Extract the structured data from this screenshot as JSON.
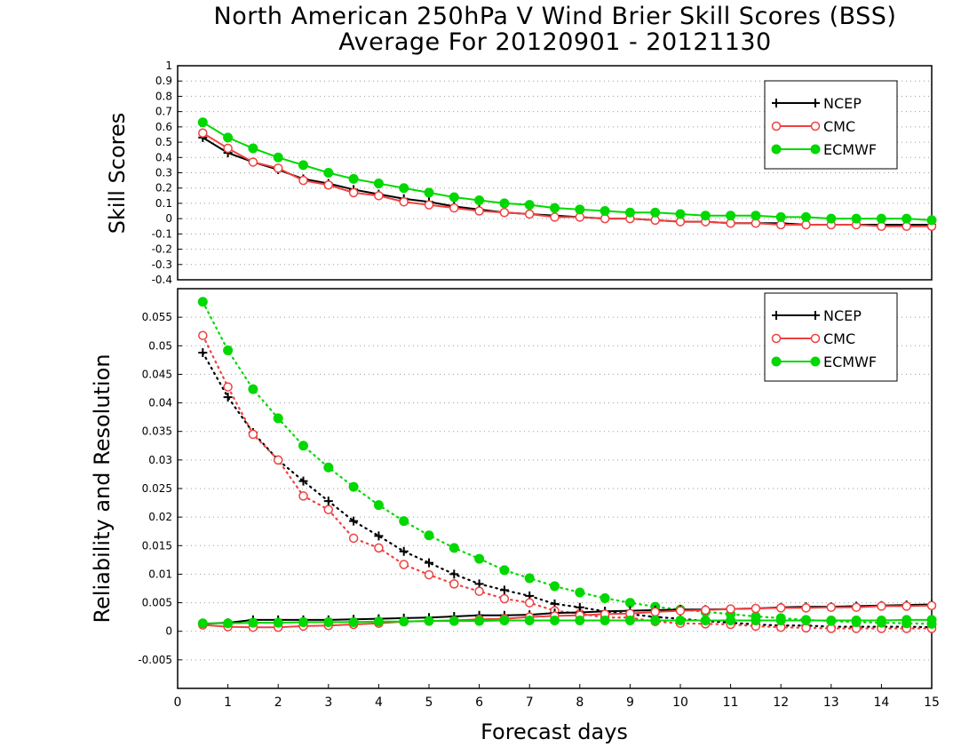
{
  "title": {
    "line1": "North American 250hPa V Wind Brier Skill Scores (BSS)",
    "line2": "Average For 20120901 - 20121130"
  },
  "colors": {
    "NCEP": "#000000",
    "CMC": "#f04040",
    "ECMWF": "#00d800",
    "grid": "#9a9a9a"
  },
  "chart_data": [
    {
      "type": "line",
      "ylabel": "Skill Scores",
      "xlabel": "",
      "xlim": [
        0,
        15
      ],
      "ylim": [
        -0.4,
        1
      ],
      "yticks": [
        "-0.4",
        "-0.3",
        "-0.2",
        "-0.1",
        "0",
        "0.1",
        "0.2",
        "0.3",
        "0.4",
        "0.5",
        "0.6",
        "0.7",
        "0.8",
        "0.9",
        "1"
      ],
      "legend": {
        "position": "top-right",
        "entries": [
          "NCEP",
          "CMC",
          "ECMWF"
        ]
      },
      "x": [
        0.5,
        1,
        1.5,
        2,
        2.5,
        3,
        3.5,
        4,
        4.5,
        5,
        5.5,
        6,
        6.5,
        7,
        7.5,
        8,
        8.5,
        9,
        9.5,
        10,
        10.5,
        11,
        11.5,
        12,
        12.5,
        13,
        13.5,
        14,
        14.5,
        15
      ],
      "series": [
        {
          "name": "NCEP",
          "marker": "plus",
          "style": "solid",
          "values": [
            0.53,
            0.43,
            0.37,
            0.32,
            0.26,
            0.23,
            0.19,
            0.16,
            0.13,
            0.11,
            0.08,
            0.06,
            0.04,
            0.03,
            0.02,
            0.01,
            0.0,
            0.0,
            -0.01,
            -0.02,
            -0.02,
            -0.03,
            -0.03,
            -0.03,
            -0.04,
            -0.04,
            -0.04,
            -0.04,
            -0.04,
            -0.04
          ]
        },
        {
          "name": "CMC",
          "marker": "open-circle",
          "style": "solid",
          "values": [
            0.56,
            0.46,
            0.37,
            0.33,
            0.25,
            0.22,
            0.17,
            0.15,
            0.11,
            0.09,
            0.07,
            0.05,
            0.04,
            0.03,
            0.01,
            0.01,
            0.0,
            0.0,
            -0.01,
            -0.02,
            -0.02,
            -0.03,
            -0.03,
            -0.04,
            -0.04,
            -0.04,
            -0.04,
            -0.05,
            -0.05,
            -0.05
          ]
        },
        {
          "name": "ECMWF",
          "marker": "filled-circle",
          "style": "solid",
          "values": [
            0.63,
            0.53,
            0.46,
            0.4,
            0.35,
            0.3,
            0.26,
            0.23,
            0.2,
            0.17,
            0.14,
            0.12,
            0.1,
            0.09,
            0.07,
            0.06,
            0.05,
            0.04,
            0.04,
            0.03,
            0.02,
            0.02,
            0.02,
            0.01,
            0.01,
            0.0,
            0.0,
            0.0,
            0.0,
            -0.01
          ]
        }
      ]
    },
    {
      "type": "line",
      "ylabel": "Reliability and Resolution",
      "xlabel": "Forecast days",
      "xlim": [
        0,
        15
      ],
      "ylim": [
        -0.01,
        0.06
      ],
      "yticks": [
        "-0.005",
        "0",
        "0.005",
        "0.01",
        "0.015",
        "0.02",
        "0.025",
        "0.03",
        "0.035",
        "0.04",
        "0.045",
        "0.05",
        "0.055"
      ],
      "xticks": [
        "0",
        "1",
        "2",
        "3",
        "4",
        "5",
        "6",
        "7",
        "8",
        "9",
        "10",
        "11",
        "12",
        "13",
        "14",
        "15"
      ],
      "legend": {
        "position": "top-right",
        "entries": [
          "NCEP",
          "CMC",
          "ECMWF"
        ]
      },
      "x": [
        0.5,
        1,
        1.5,
        2,
        2.5,
        3,
        3.5,
        4,
        4.5,
        5,
        5.5,
        6,
        6.5,
        7,
        7.5,
        8,
        8.5,
        9,
        9.5,
        10,
        10.5,
        11,
        11.5,
        12,
        12.5,
        13,
        13.5,
        14,
        14.5,
        15
      ],
      "series": [
        {
          "name": "NCEP",
          "marker": "plus",
          "style": "dotted",
          "role": "resolution",
          "values": [
            0.0488,
            0.041,
            0.0348,
            0.03,
            0.0263,
            0.0228,
            0.0193,
            0.0167,
            0.014,
            0.012,
            0.01,
            0.0083,
            0.0072,
            0.0062,
            0.0048,
            0.0042,
            0.0035,
            0.003,
            0.0025,
            0.0022,
            0.0018,
            0.0015,
            0.0012,
            0.001,
            0.001,
            0.0008,
            0.0008,
            0.0008,
            0.0008,
            0.0007
          ]
        },
        {
          "name": "CMC",
          "marker": "open-circle",
          "style": "dotted",
          "role": "resolution",
          "values": [
            0.0518,
            0.0428,
            0.0345,
            0.03,
            0.0237,
            0.0213,
            0.0163,
            0.0146,
            0.0117,
            0.0099,
            0.0083,
            0.007,
            0.0057,
            0.005,
            0.0036,
            0.0031,
            0.0024,
            0.0024,
            0.0017,
            0.0014,
            0.0013,
            0.0012,
            0.0009,
            0.0007,
            0.0006,
            0.0005,
            0.0005,
            0.0005,
            0.0005,
            0.0005
          ]
        },
        {
          "name": "ECMWF",
          "marker": "filled-circle",
          "style": "dotted",
          "role": "resolution",
          "values": [
            0.0577,
            0.0492,
            0.0424,
            0.0373,
            0.0325,
            0.0287,
            0.0253,
            0.0221,
            0.0193,
            0.0168,
            0.0146,
            0.0127,
            0.0107,
            0.0093,
            0.0079,
            0.0068,
            0.0058,
            0.005,
            0.0043,
            0.0038,
            0.0034,
            0.003,
            0.0026,
            0.0023,
            0.002,
            0.0018,
            0.0016,
            0.0015,
            0.0014,
            0.0013
          ]
        },
        {
          "name": "NCEP",
          "marker": "plus",
          "style": "solid",
          "role": "reliability",
          "values": [
            0.0013,
            0.0015,
            0.002,
            0.002,
            0.002,
            0.002,
            0.0021,
            0.0022,
            0.0023,
            0.0024,
            0.0026,
            0.0028,
            0.0028,
            0.0029,
            0.0032,
            0.0033,
            0.0035,
            0.0036,
            0.0037,
            0.0038,
            0.0038,
            0.0039,
            0.004,
            0.0042,
            0.0043,
            0.0043,
            0.0044,
            0.0045,
            0.0046,
            0.0047
          ]
        },
        {
          "name": "CMC",
          "marker": "open-circle",
          "style": "solid",
          "role": "reliability",
          "values": [
            0.0011,
            0.0008,
            0.0007,
            0.0007,
            0.0009,
            0.001,
            0.0012,
            0.0014,
            0.0017,
            0.0018,
            0.0019,
            0.0021,
            0.0022,
            0.0025,
            0.0027,
            0.0028,
            0.003,
            0.0031,
            0.0034,
            0.0036,
            0.0037,
            0.0039,
            0.004,
            0.0041,
            0.0041,
            0.0042,
            0.0042,
            0.0044,
            0.0044,
            0.0045
          ]
        },
        {
          "name": "ECMWF",
          "marker": "filled-circle",
          "style": "solid",
          "role": "reliability",
          "values": [
            0.0014,
            0.0014,
            0.0015,
            0.0015,
            0.0016,
            0.0016,
            0.0016,
            0.0017,
            0.0017,
            0.0018,
            0.0018,
            0.0018,
            0.0019,
            0.0019,
            0.0019,
            0.0019,
            0.0019,
            0.0019,
            0.0019,
            0.0019,
            0.0019,
            0.0019,
            0.0019,
            0.0019,
            0.0019,
            0.0019,
            0.0019,
            0.0019,
            0.002,
            0.002
          ]
        }
      ]
    }
  ]
}
